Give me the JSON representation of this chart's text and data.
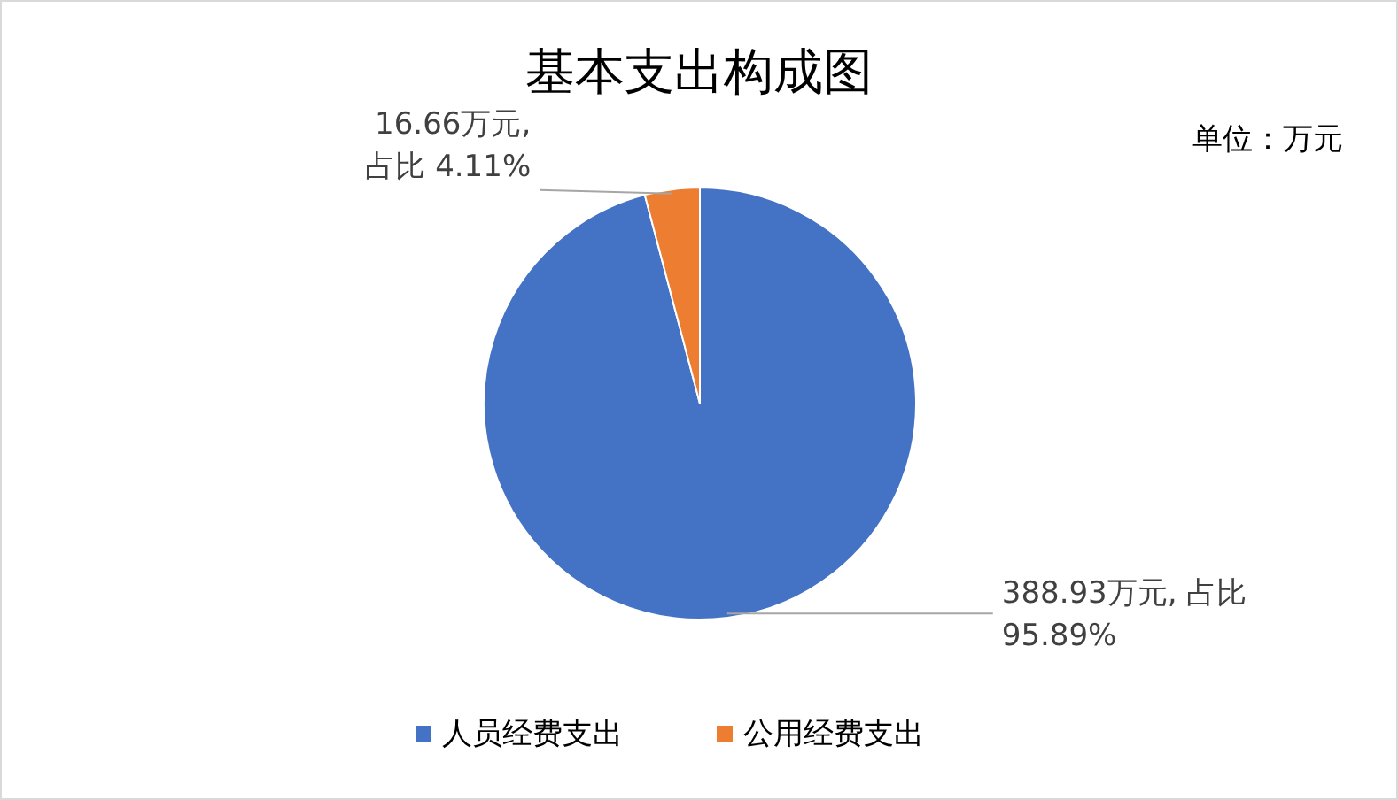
{
  "chart_data": {
    "type": "pie",
    "title": "基本支出构成图",
    "categories": [
      "人员经费支出",
      "公用经费支出"
    ],
    "values": [
      388.93,
      16.66
    ],
    "colors": [
      "#4472c4",
      "#ed7d31"
    ],
    "value_labels": [
      "388.93万元, 占比95.89%",
      "16.66万元, 占比 4.11%"
    ],
    "annotations": [
      "单位：万元"
    ],
    "legend": "bottom"
  }
}
